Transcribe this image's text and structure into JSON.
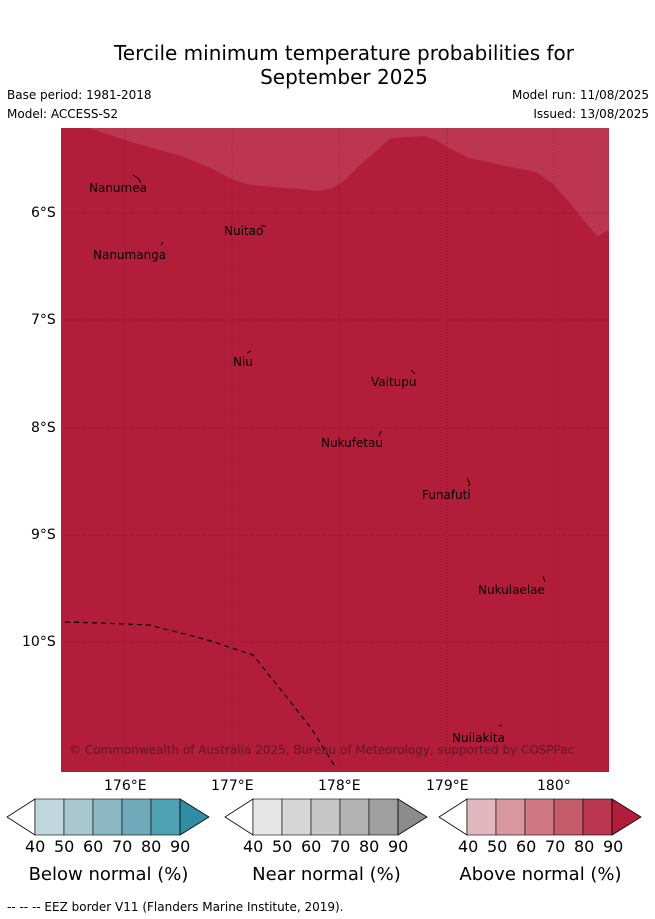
{
  "title_line1": "Tercile minimum temperature probabilities for",
  "title_line2": "September 2025",
  "base_period": "Base period: 1981-2018",
  "model": "Model: ACCESS-S2",
  "model_run": "Model run: 11/08/2025",
  "issued": "Issued: 13/08/2025",
  "lat_labels": [
    "6°S",
    "7°S",
    "8°S",
    "9°S",
    "10°S"
  ],
  "lon_labels": [
    "176°E",
    "177°E",
    "178°E",
    "179°E",
    "180°"
  ],
  "places": [
    "Nanumea",
    "Nuitao",
    "Nanumanga",
    "Niu",
    "Vaitupu",
    "Nukufetau",
    "Funafuti",
    "Nukulaelae",
    "Nuilakita"
  ],
  "copyright": "© Commonwealth of Australia 2025, Bureau of Meteorology, supported by COSPPac",
  "colors": {
    "below": [
      "#bfd6dc",
      "#a8c8cf",
      "#8cb8c4",
      "#6eaab9",
      "#4ea2b2",
      "#2f8ea4"
    ],
    "near": [
      "#e6e6e6",
      "#d6d6d6",
      "#c6c6c6",
      "#b3b3b3",
      "#a0a0a0",
      "#8c8c8c"
    ],
    "above": [
      "#e2b8bf",
      "#d8979f",
      "#d07982",
      "#c55c69",
      "#bb3650",
      "#b21e3a"
    ]
  },
  "colorbars": [
    {
      "label": "Below normal (%)",
      "ticks": [
        "40",
        "50",
        "60",
        "70",
        "80",
        "90"
      ]
    },
    {
      "label": "Near normal (%)",
      "ticks": [
        "40",
        "50",
        "60",
        "70",
        "80",
        "90"
      ]
    },
    {
      "label": "Above normal (%)",
      "ticks": [
        "40",
        "50",
        "60",
        "70",
        "80",
        "90"
      ]
    }
  ],
  "footnote": "--  --  -- EEZ border V11 (Flanders Marine Institute, 2019)."
}
